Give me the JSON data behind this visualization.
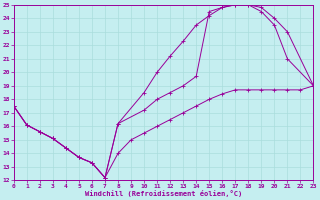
{
  "xlabel": "Windchill (Refroidissement éolien,°C)",
  "xlim": [
    0,
    23
  ],
  "ylim": [
    12,
    25
  ],
  "xticks": [
    0,
    1,
    2,
    3,
    4,
    5,
    6,
    7,
    8,
    9,
    10,
    11,
    12,
    13,
    14,
    15,
    16,
    17,
    18,
    19,
    20,
    21,
    22,
    23
  ],
  "yticks": [
    12,
    13,
    14,
    15,
    16,
    17,
    18,
    19,
    20,
    21,
    22,
    23,
    24,
    25
  ],
  "bg_color": "#c5eef0",
  "line_color": "#990099",
  "grid_color": "#aadddd",
  "line1_x": [
    0,
    1,
    2,
    3,
    4,
    5,
    6,
    7,
    8,
    9,
    10,
    11,
    12,
    13,
    14,
    15,
    16,
    17,
    18,
    19,
    20,
    21,
    22,
    23
  ],
  "line1_y": [
    17.5,
    16.1,
    15.6,
    15.1,
    14.4,
    13.7,
    13.3,
    12.2,
    14.0,
    15.0,
    15.5,
    16.0,
    16.5,
    17.0,
    17.5,
    18.0,
    18.4,
    18.7,
    18.7,
    18.7,
    18.7,
    18.7,
    18.7,
    19.0
  ],
  "line2_x": [
    0,
    1,
    2,
    3,
    4,
    5,
    6,
    7,
    8,
    10,
    11,
    12,
    13,
    14,
    15,
    16,
    17,
    18,
    19,
    20,
    21,
    23
  ],
  "line2_y": [
    17.5,
    16.1,
    15.6,
    15.1,
    14.4,
    13.7,
    13.3,
    12.2,
    16.2,
    18.5,
    20.0,
    21.2,
    22.3,
    23.5,
    24.2,
    24.8,
    25.0,
    25.0,
    24.5,
    23.5,
    21.0,
    19.0
  ],
  "line3_x": [
    0,
    1,
    2,
    3,
    4,
    5,
    6,
    7,
    8,
    10,
    11,
    12,
    13,
    14,
    15,
    16,
    17,
    18,
    19,
    20,
    21,
    23
  ],
  "line3_y": [
    17.5,
    16.1,
    15.6,
    15.1,
    14.4,
    13.7,
    13.3,
    12.2,
    16.2,
    17.2,
    18.0,
    18.5,
    19.0,
    19.7,
    24.5,
    24.8,
    25.0,
    25.0,
    24.8,
    24.0,
    23.0,
    19.0
  ]
}
